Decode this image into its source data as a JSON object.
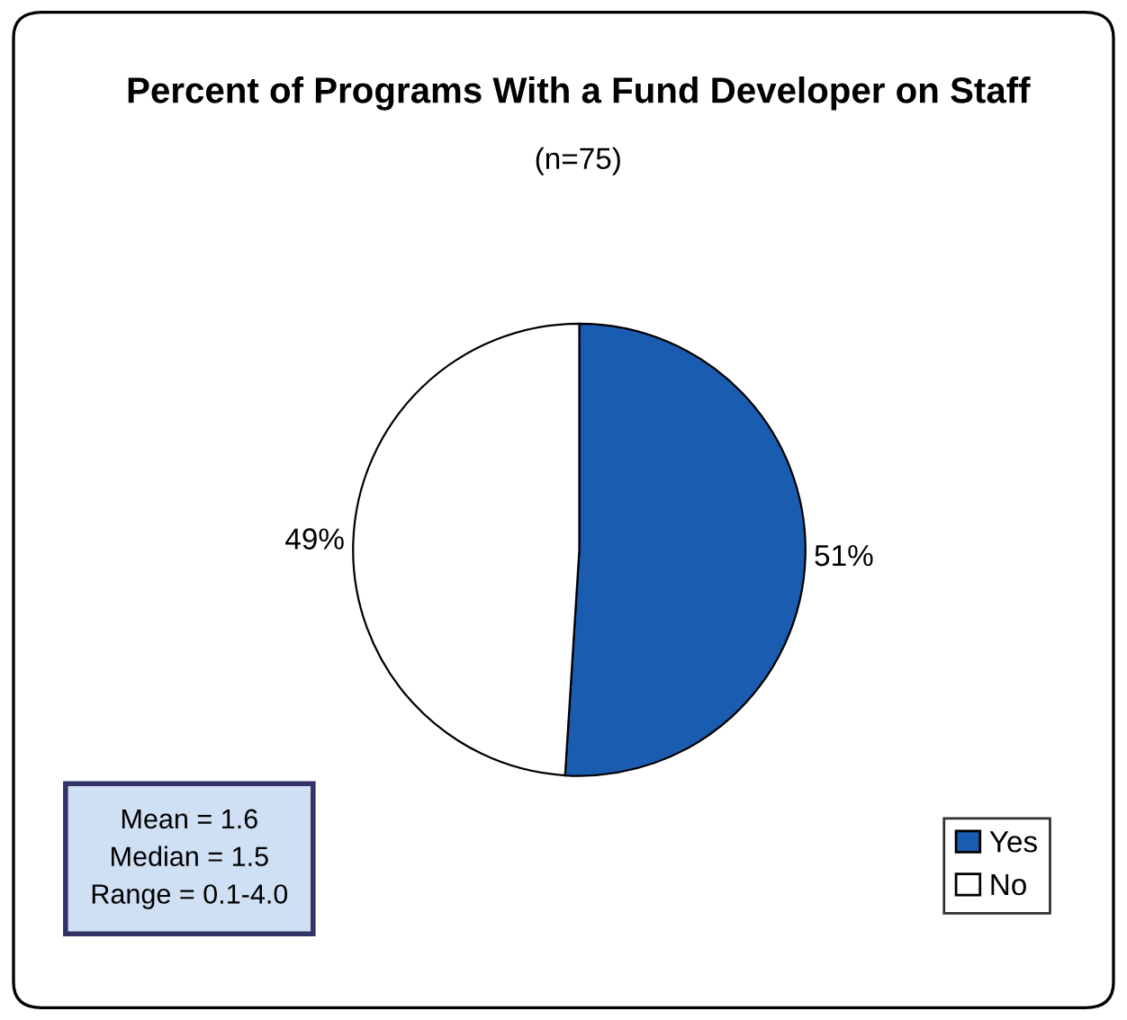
{
  "chart_data": {
    "type": "pie",
    "title": "Percent of Programs With a Fund Developer on Staff",
    "subtitle": "(n=75)",
    "categories": [
      "Yes",
      "No"
    ],
    "values": [
      51,
      49
    ],
    "colors": [
      "#1a5cb0",
      "#ffffff"
    ],
    "value_labels": [
      "51%",
      "49%"
    ],
    "legend": "bottom right",
    "annotations": [
      "Mean = 1.6",
      "Median = 1.5",
      "Range = 0.1-4.0"
    ]
  }
}
